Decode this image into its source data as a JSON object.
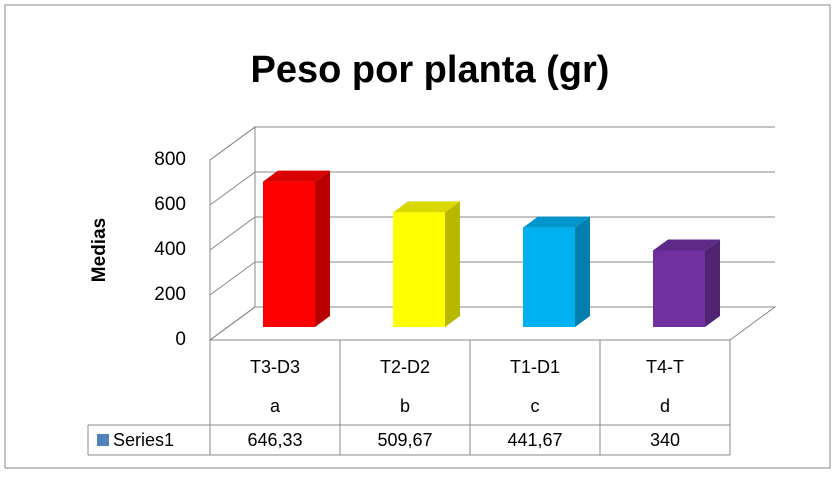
{
  "chart_data": {
    "type": "bar3d",
    "title": "Peso por planta (gr)",
    "y_label": "Medias",
    "categories": [
      "T3-D3",
      "T2-D2",
      "T1-D1",
      "T4-T"
    ],
    "groups": [
      "a",
      "b",
      "c",
      "d"
    ],
    "series": [
      {
        "name": "Series1",
        "color": "#4f81bd",
        "values": [
          646.33,
          509.67,
          441.67,
          340
        ],
        "value_labels": [
          "646,33",
          "509,67",
          "441,67",
          "340"
        ],
        "bar_colors": [
          "#ff0000",
          "#ffff00",
          "#00b0f0",
          "#7030a0"
        ]
      }
    ],
    "ylim": [
      0,
      800
    ],
    "yticks": [
      0,
      200,
      400,
      600,
      800
    ],
    "grid": true,
    "data_table": true
  }
}
